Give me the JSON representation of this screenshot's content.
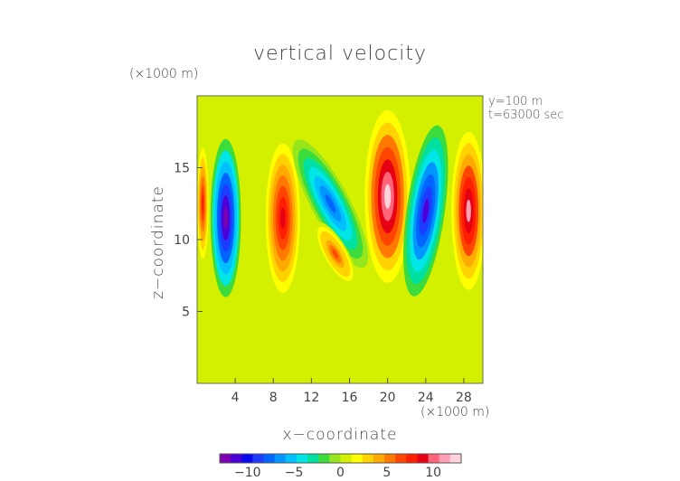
{
  "chart_data": {
    "type": "heatmap",
    "title": "vertical velocity",
    "xlabel": "x−coordinate",
    "ylabel": "z−coordinate",
    "x_unit": "(×1000 m)",
    "y_unit": "(×1000 m)",
    "annotations": [
      "y=100 m",
      "t=63000 sec"
    ],
    "xlim": [
      0,
      30
    ],
    "ylim": [
      0,
      20
    ],
    "x_ticks": [
      4,
      8,
      12,
      16,
      20,
      24,
      28
    ],
    "y_ticks": [
      5,
      10,
      15
    ],
    "colorbar": {
      "range": [
        -13,
        13
      ],
      "ticks": [
        -10,
        -5,
        0,
        5,
        10
      ],
      "tick_labels": [
        "−10",
        "−5",
        "0",
        "5",
        "10"
      ],
      "colors": [
        "#7a00b0",
        "#4b00d8",
        "#0a0af0",
        "#1e3cff",
        "#0064ff",
        "#0096ff",
        "#00c0ff",
        "#00e6e6",
        "#00e0a0",
        "#3cdc3c",
        "#96e61e",
        "#d2f000",
        "#ffff00",
        "#ffd200",
        "#ffaa00",
        "#ff7800",
        "#ff4600",
        "#ff1e00",
        "#e60014",
        "#ff6478",
        "#ffa0b4",
        "#ffd2dc"
      ]
    },
    "features": [
      {
        "x": 3.0,
        "z": 11.5,
        "value": -13
      },
      {
        "x": 0.6,
        "z": 12.5,
        "value": 8
      },
      {
        "x": 9.0,
        "z": 11.5,
        "value": 9
      },
      {
        "x": 14.0,
        "z": 12.5,
        "value": -8
      },
      {
        "x": 14.5,
        "z": 9.0,
        "value": 6
      },
      {
        "x": 20.0,
        "z": 13.0,
        "value": 12
      },
      {
        "x": 24.0,
        "z": 12.0,
        "value": -11
      },
      {
        "x": 28.5,
        "z": 12.0,
        "value": 11
      }
    ]
  }
}
